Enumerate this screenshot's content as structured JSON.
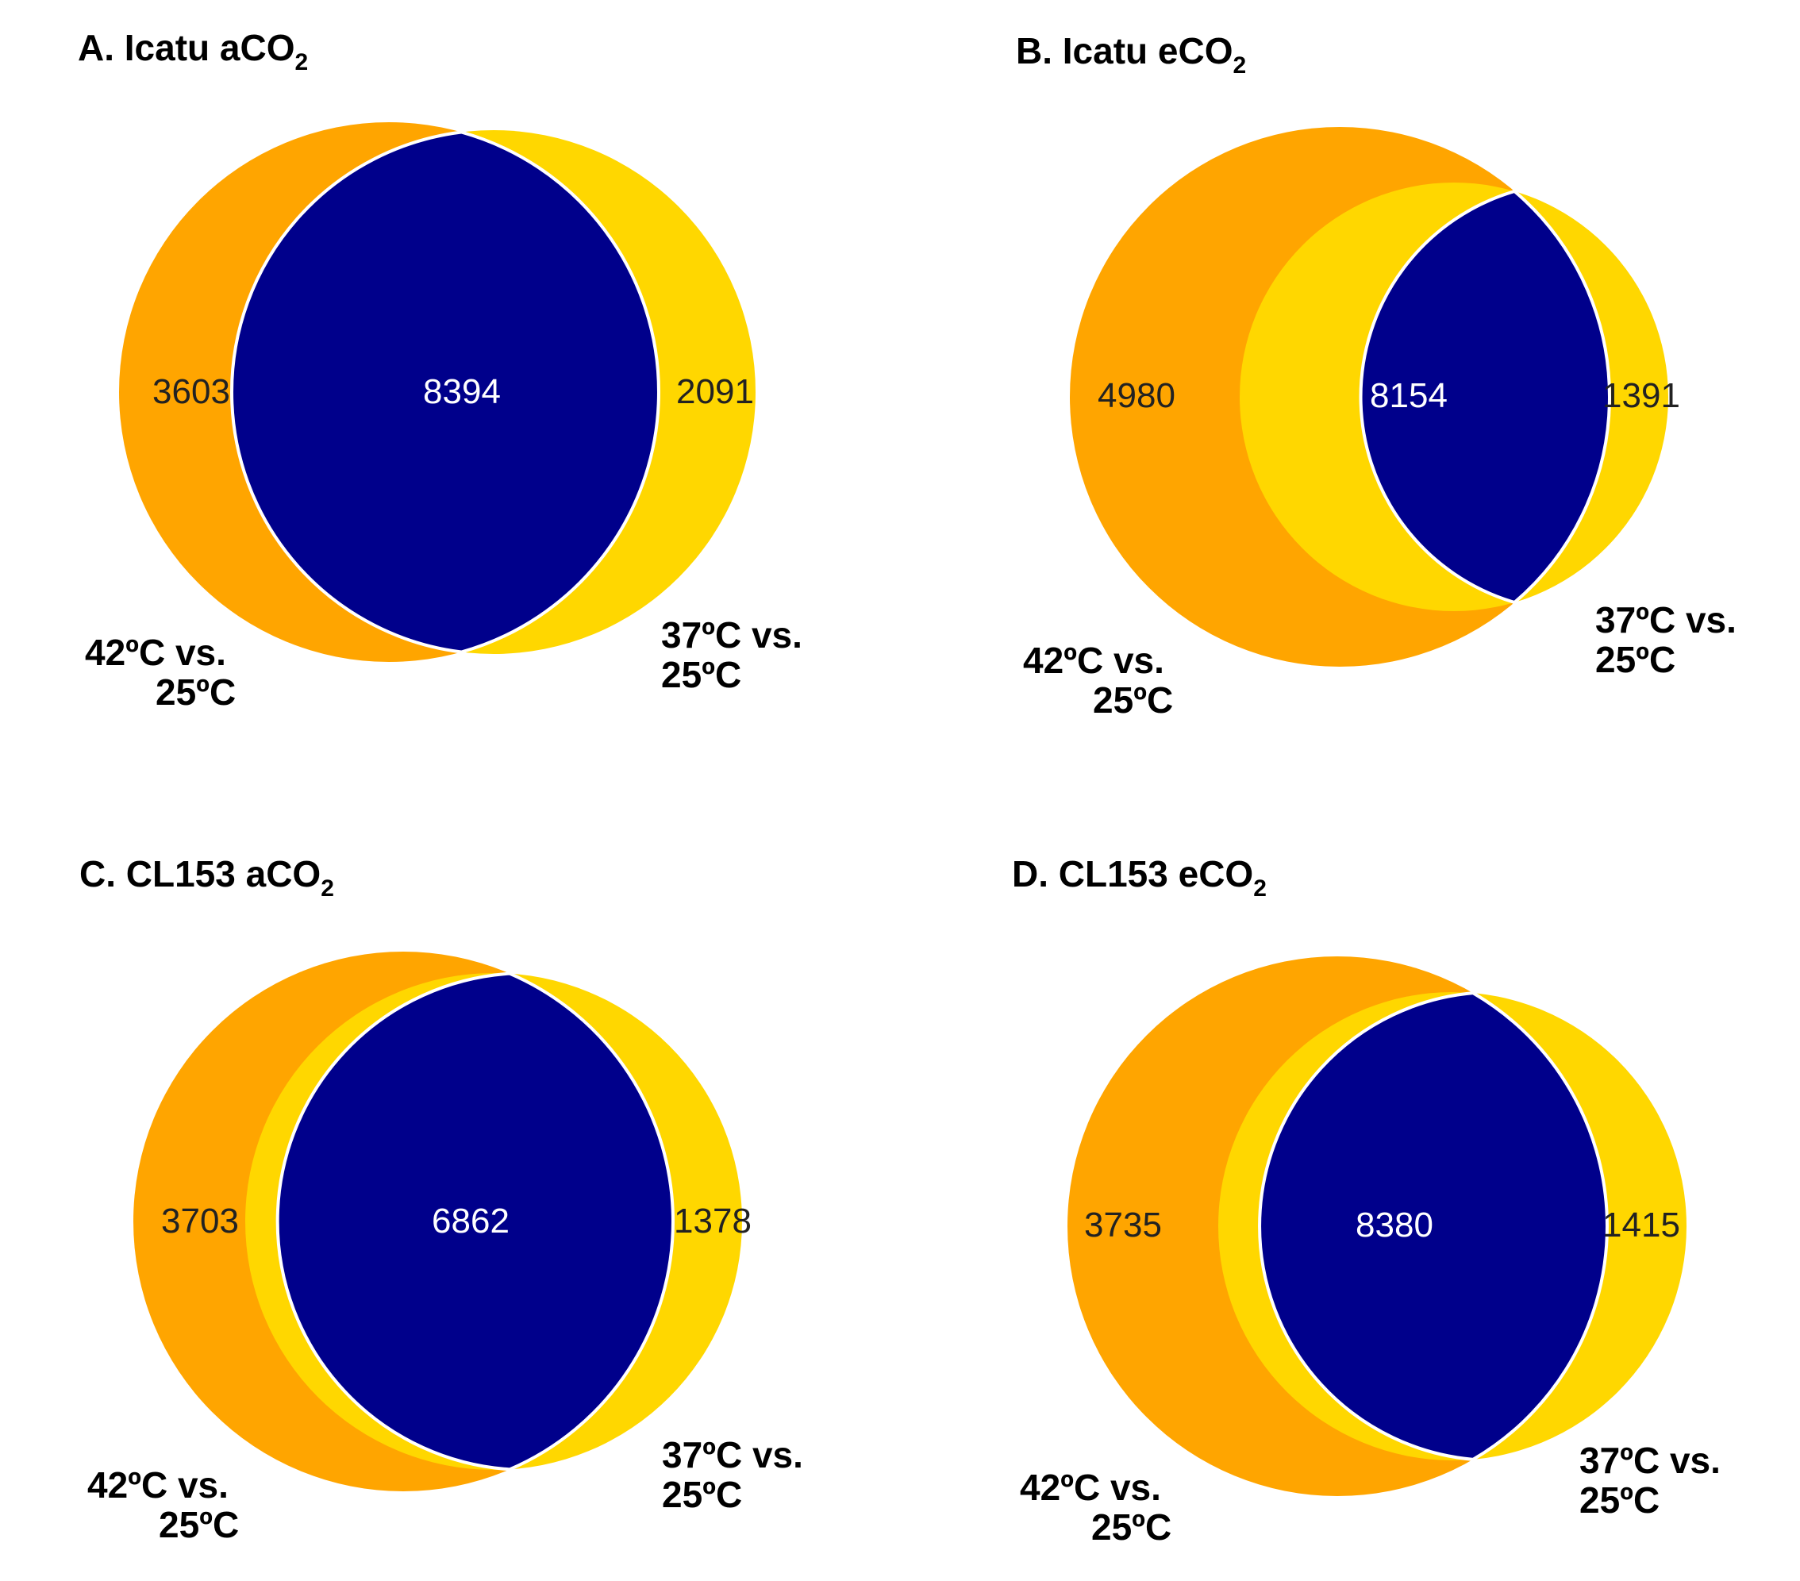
{
  "colors": {
    "left_only": "#FFA500",
    "right_only": "#FFD700",
    "overlap": "#00008B",
    "outline": "#FFFFFF",
    "number_dark": "#222222",
    "number_light": "#FFFFFF"
  },
  "panels": [
    {
      "title": {
        "main": "A. Icatu aCO",
        "sub": "2"
      },
      "counts": {
        "left_only": "3603",
        "both": "8394",
        "right_only": "2091"
      },
      "left_label": {
        "line1": "42ºC vs.",
        "line2": "25ºC"
      },
      "right_label": {
        "line1": "37ºC vs.",
        "line2": "25ºC"
      }
    },
    {
      "title": {
        "main": "B. Icatu eCO",
        "sub": "2"
      },
      "counts": {
        "left_only": "4980",
        "both": "8154",
        "right_only": "1391"
      },
      "left_label": {
        "line1": "42ºC vs.",
        "line2": "25ºC"
      },
      "right_label": {
        "line1": "37ºC vs.",
        "line2": "25ºC"
      }
    },
    {
      "title": {
        "main": "C. CL153 aCO",
        "sub": "2"
      },
      "counts": {
        "left_only": "3703",
        "both": "6862",
        "right_only": "1378"
      },
      "left_label": {
        "line1": "42ºC vs.",
        "line2": "25ºC"
      },
      "right_label": {
        "line1": "37ºC vs.",
        "line2": "25ºC"
      }
    },
    {
      "title": {
        "main": "D. CL153 eCO",
        "sub": "2"
      },
      "counts": {
        "left_only": "3735",
        "both": "8380",
        "right_only": "1415"
      },
      "left_label": {
        "line1": "42ºC vs.",
        "line2": "25ºC"
      },
      "right_label": {
        "line1": "37ºC vs.",
        "line2": "25ºC"
      }
    }
  ]
}
